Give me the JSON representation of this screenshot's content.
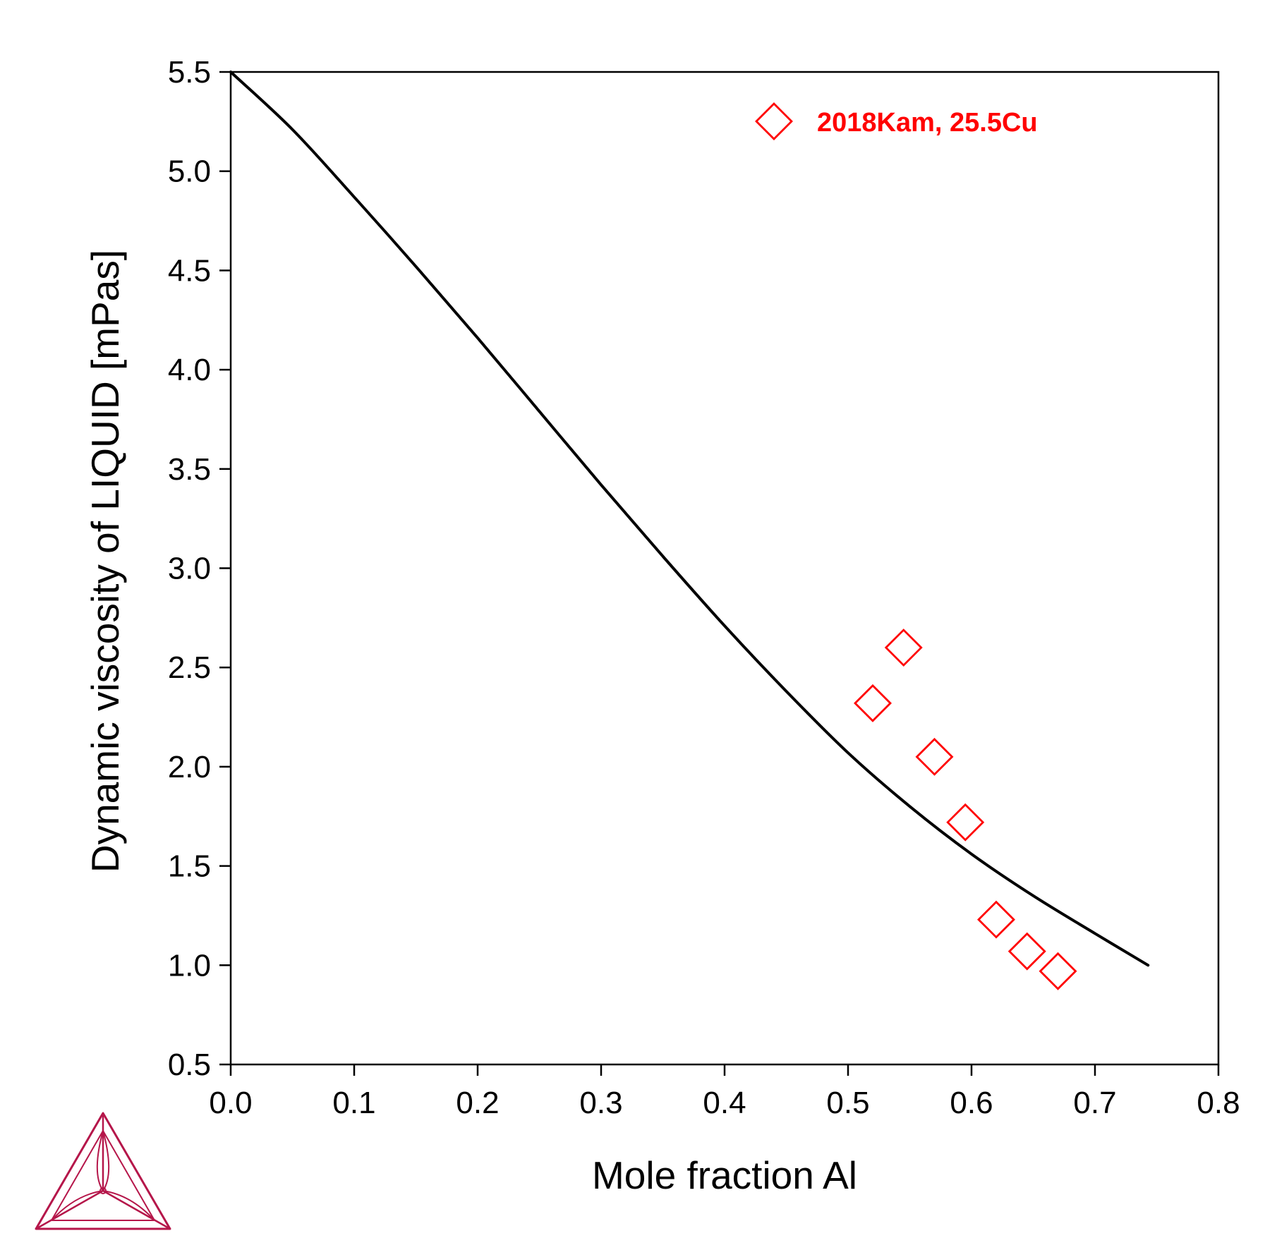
{
  "chart_data": {
    "type": "line",
    "title": "",
    "xlabel": "Mole fraction Al",
    "ylabel": "Dynamic viscosity of LIQUID [mPas]",
    "xlim": [
      0,
      0.8
    ],
    "ylim": [
      0.5,
      5.5
    ],
    "xticks": [
      "0.0",
      "0.1",
      "0.2",
      "0.3",
      "0.4",
      "0.5",
      "0.6",
      "0.7",
      "0.8"
    ],
    "yticks": [
      "0.5",
      "1.0",
      "1.5",
      "2.0",
      "2.5",
      "3.0",
      "3.5",
      "4.0",
      "4.5",
      "5.0",
      "5.5"
    ],
    "grid": false,
    "legend_position": "top-right",
    "series": [
      {
        "kind": "line",
        "color": "#000000",
        "x": [
          0.0,
          0.05,
          0.1,
          0.15,
          0.2,
          0.25,
          0.3,
          0.35,
          0.4,
          0.45,
          0.5,
          0.55,
          0.6,
          0.65,
          0.7,
          0.743
        ],
        "y": [
          5.5,
          5.21,
          4.87,
          4.52,
          4.16,
          3.79,
          3.42,
          3.06,
          2.71,
          2.38,
          2.07,
          1.8,
          1.56,
          1.35,
          1.16,
          1.0
        ]
      },
      {
        "kind": "scatter",
        "name": "2018Kam, 25.5Cu",
        "color": "#ff0000",
        "marker": "diamond-open",
        "x": [
          0.52,
          0.545,
          0.57,
          0.595,
          0.62,
          0.645,
          0.67
        ],
        "y": [
          2.32,
          2.6,
          2.05,
          1.72,
          1.23,
          1.07,
          0.97
        ]
      }
    ]
  },
  "logo": {
    "name": "thermo-calc-logo-icon",
    "color": "#b5164a"
  }
}
